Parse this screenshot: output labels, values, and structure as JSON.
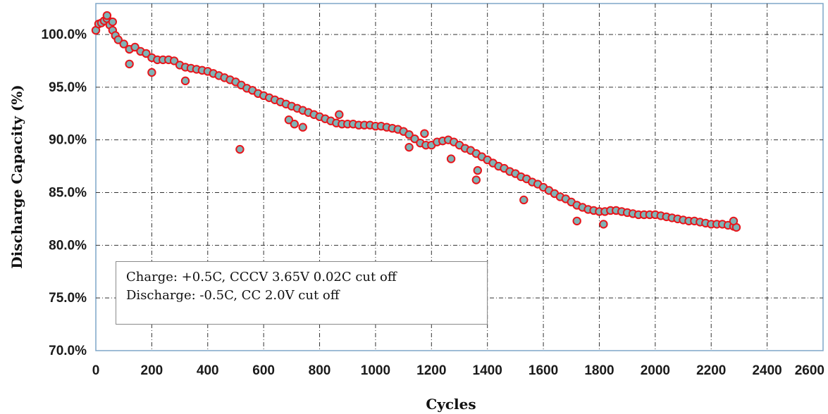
{
  "chart_data": {
    "type": "scatter",
    "title": "",
    "xlabel": "Cycles",
    "ylabel": "Discharge Capacity (%)",
    "xlim": [
      0,
      2600
    ],
    "ylim": [
      70,
      103
    ],
    "x_ticks": [
      "0",
      "200",
      "400",
      "600",
      "800",
      "1000",
      "1200",
      "1400",
      "1600",
      "1800",
      "2000",
      "2200",
      "2400",
      "2600"
    ],
    "x_tick_values": [
      0,
      200,
      400,
      600,
      800,
      1000,
      1200,
      1400,
      1600,
      1800,
      2000,
      2200,
      2400,
      2600
    ],
    "y_ticks": [
      "70.0%",
      "75.0%",
      "80.0%",
      "85.0%",
      "90.0%",
      "95.0%",
      "100.0%"
    ],
    "y_tick_values": [
      70,
      75,
      80,
      85,
      90,
      95,
      100
    ],
    "grid": true,
    "annotations": [
      "Charge: +0.5C, CCCV 3.65V 0.02C cut off",
      "Discharge: -0.5C, CC 2.0V cut off"
    ],
    "marker_fill": "#7fb3b5",
    "marker_edge": "#e8151b",
    "series": [
      {
        "x": [
          0,
          10,
          20,
          30,
          40,
          50,
          60,
          70,
          80,
          100,
          120,
          140,
          160,
          180,
          200,
          220,
          240,
          260,
          280,
          300,
          320,
          340,
          360,
          380,
          400,
          420,
          440,
          460,
          480,
          500,
          520,
          540,
          560,
          580,
          600,
          620,
          640,
          660,
          680,
          700,
          720,
          740,
          760,
          780,
          800,
          820,
          840,
          860,
          880,
          900,
          920,
          940,
          960,
          980,
          1000,
          1020,
          1040,
          1060,
          1080,
          1100,
          1120,
          1140,
          1160,
          1180,
          1200,
          1220,
          1240,
          1260,
          1280,
          1300,
          1320,
          1340,
          1360,
          1380,
          1400,
          1420,
          1440,
          1460,
          1480,
          1500,
          1520,
          1540,
          1560,
          1580,
          1600,
          1620,
          1640,
          1660,
          1680,
          1700,
          1720,
          1740,
          1760,
          1780,
          1800,
          1820,
          1840,
          1860,
          1880,
          1900,
          1920,
          1940,
          1960,
          1980,
          2000,
          2020,
          2040,
          2060,
          2080,
          2100,
          2120,
          2140,
          2160,
          2180,
          2200,
          2220,
          2240,
          2260,
          2280,
          2290,
          40,
          60,
          120,
          200,
          320,
          515,
          690,
          710,
          740,
          870,
          1120,
          1175,
          1270,
          1360,
          1365,
          1530,
          1720,
          1815,
          2280
        ],
        "y": [
          100.4,
          101.0,
          101.1,
          101.3,
          101.5,
          100.9,
          100.4,
          99.9,
          99.5,
          99.1,
          98.6,
          98.8,
          98.4,
          98.2,
          97.8,
          97.6,
          97.6,
          97.6,
          97.5,
          97.1,
          96.9,
          96.8,
          96.7,
          96.6,
          96.5,
          96.3,
          96.1,
          95.9,
          95.7,
          95.5,
          95.2,
          94.9,
          94.7,
          94.4,
          94.2,
          94.0,
          93.8,
          93.6,
          93.4,
          93.2,
          93.0,
          92.8,
          92.6,
          92.4,
          92.2,
          92.0,
          91.8,
          91.6,
          91.5,
          91.5,
          91.5,
          91.4,
          91.4,
          91.4,
          91.3,
          91.3,
          91.2,
          91.1,
          91.0,
          90.8,
          90.5,
          90.1,
          89.7,
          89.5,
          89.5,
          89.8,
          89.9,
          90.0,
          89.8,
          89.5,
          89.2,
          89.0,
          88.7,
          88.4,
          88.1,
          87.8,
          87.5,
          87.3,
          87.0,
          86.8,
          86.5,
          86.3,
          86.0,
          85.8,
          85.5,
          85.2,
          84.9,
          84.6,
          84.4,
          84.1,
          83.8,
          83.6,
          83.4,
          83.3,
          83.2,
          83.2,
          83.3,
          83.3,
          83.2,
          83.1,
          83.0,
          82.9,
          82.9,
          82.9,
          82.9,
          82.8,
          82.7,
          82.6,
          82.5,
          82.4,
          82.3,
          82.3,
          82.2,
          82.1,
          82.0,
          82.0,
          82.0,
          81.9,
          81.8,
          81.7,
          101.8,
          101.2,
          97.2,
          96.4,
          95.6,
          89.1,
          91.9,
          91.5,
          91.2,
          92.4,
          89.3,
          90.6,
          88.2,
          86.2,
          87.1,
          84.3,
          82.3,
          82.0,
          82.3
        ]
      }
    ]
  }
}
